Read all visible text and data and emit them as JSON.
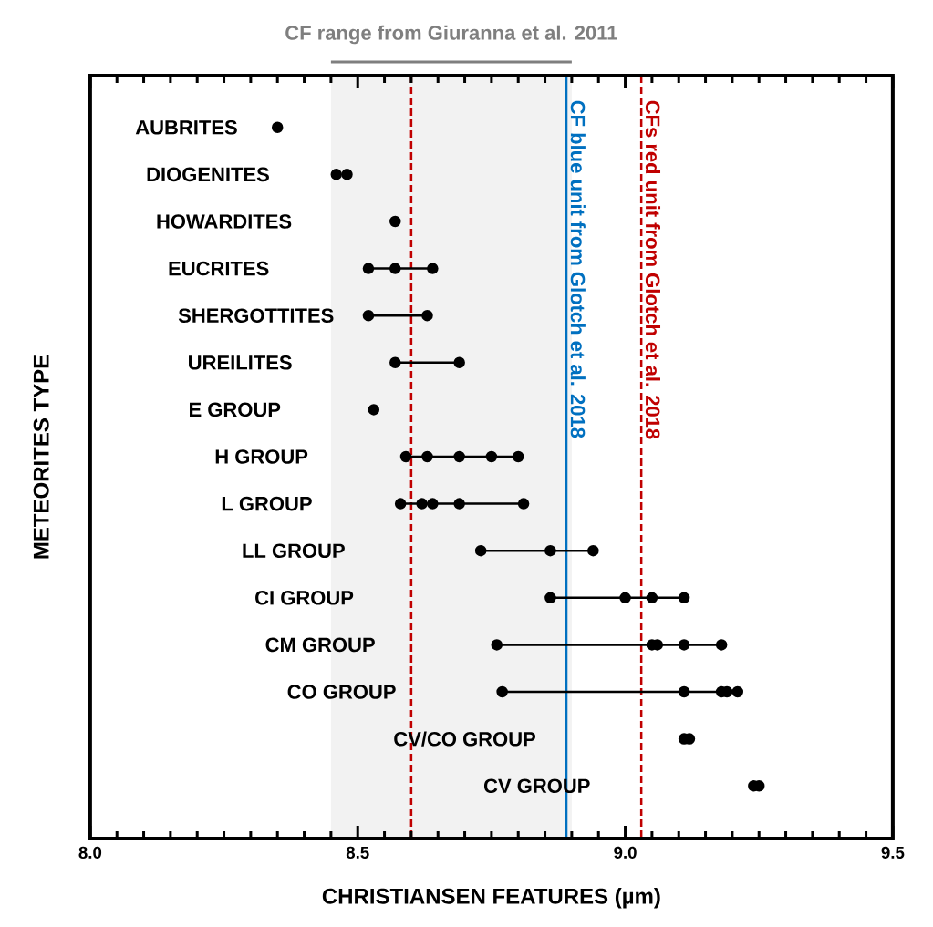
{
  "chart_data": {
    "type": "line",
    "orientation": "horizontal",
    "xlabel": "CHRISTIANSEN FEATURES (µm)",
    "ylabel": "METEORITES TYPE",
    "categories": [
      "AUBRITES",
      "DIOGENITES",
      "HOWARDITES",
      "EUCRITES",
      "SHERGOTTITES",
      "UREILITES",
      "E GROUP",
      "H GROUP",
      "L GROUP",
      "LL GROUP",
      "CI GROUP",
      "CM GROUP",
      "CO GROUP",
      "CV/CO GROUP",
      "CV GROUP"
    ],
    "series": [
      {
        "color": "#000000",
        "x": [
          "AUBRITES"
        ],
        "values": [
          8.35
        ]
      },
      {
        "type": "scatter",
        "color": "#000000",
        "x": [
          "DIOGENITES",
          "DIOGENITES"
        ],
        "values": [
          8.46,
          8.48
        ]
      },
      {
        "color": "#000000",
        "x": [
          "HOWARDITES"
        ],
        "values": [
          8.57
        ]
      },
      {
        "color": "#000000",
        "x": [
          "EUCRITES",
          "EUCRITES",
          "EUCRITES"
        ],
        "values": [
          8.52,
          8.57,
          8.64
        ]
      },
      {
        "color": "#000000",
        "x": [
          "SHERGOTTITES",
          "SHERGOTTITES"
        ],
        "values": [
          8.52,
          8.63
        ]
      },
      {
        "color": "#000000",
        "x": [
          "UREILITES",
          "UREILITES"
        ],
        "values": [
          8.57,
          8.69
        ]
      },
      {
        "color": "#000000",
        "x": [
          "E GROUP"
        ],
        "values": [
          8.53
        ]
      },
      {
        "color": "#000000",
        "x": [
          "H GROUP",
          "H GROUP",
          "H GROUP",
          "H GROUP",
          "H GROUP"
        ],
        "values": [
          8.59,
          8.63,
          8.69,
          8.75,
          8.8
        ]
      },
      {
        "color": "#000000",
        "x": [
          "L GROUP",
          "L GROUP",
          "L GROUP",
          "L GROUP",
          "L GROUP"
        ],
        "values": [
          8.58,
          8.62,
          8.64,
          8.69,
          8.81
        ]
      },
      {
        "color": "#000000",
        "x": [
          "LL GROUP",
          "LL GROUP",
          "LL GROUP"
        ],
        "values": [
          8.73,
          8.86,
          8.94
        ]
      },
      {
        "color": "#000000",
        "x": [
          "CI GROUP",
          "CI GROUP",
          "CI GROUP",
          "CI GROUP"
        ],
        "values": [
          8.86,
          9.0,
          9.05,
          9.11
        ]
      },
      {
        "color": "#000000",
        "x": [
          "CM GROUP",
          "CM GROUP",
          "CM GROUP",
          "CM GROUP",
          "CM GROUP"
        ],
        "values": [
          8.76,
          9.05,
          9.06,
          9.11,
          9.18
        ]
      },
      {
        "color": "#000000",
        "x": [
          "CO GROUP",
          "CO GROUP",
          "CO GROUP",
          "CO GROUP",
          "CO GROUP"
        ],
        "values": [
          8.77,
          9.11,
          9.18,
          9.19,
          9.21
        ]
      },
      {
        "type": "scatter",
        "color": "#000000",
        "x": [
          "CV/CO GROUP",
          "CV/CO GROUP"
        ],
        "values": [
          9.11,
          9.12
        ]
      },
      {
        "type": "scatter",
        "color": "#000000",
        "x": [
          "CV GROUP",
          "CV GROUP"
        ],
        "values": [
          9.24,
          9.25
        ]
      }
    ],
    "marker": "circle",
    "line_style": "solid",
    "xlim": [
      8.0,
      9.5
    ],
    "xticks": [
      {
        "value": 8,
        "label": "8.0"
      },
      {
        "value": 8.5,
        "label": "8.5"
      },
      {
        "value": 9,
        "label": "9.0"
      },
      {
        "value": 9.5,
        "label": "9.5"
      }
    ],
    "bands": [
      {
        "axis": "x",
        "from": 8.45,
        "to": 8.9,
        "label": "CF range from Giuranna et al. 2011",
        "color": "#f2f2f2"
      }
    ],
    "ref_lines": [
      {
        "axis": "x",
        "value": 8.6,
        "color": "#c00000",
        "line_style": "dashed"
      },
      {
        "axis": "x",
        "value": 8.89,
        "color": "#0070c0",
        "line_style": "solid",
        "label": "CF blue unit from Glotch et al. 2018"
      },
      {
        "axis": "x",
        "value": 9.03,
        "color": "#c00000",
        "line_style": "dashed",
        "label": "CFs red unit from Glotch et al. 2018"
      }
    ]
  }
}
